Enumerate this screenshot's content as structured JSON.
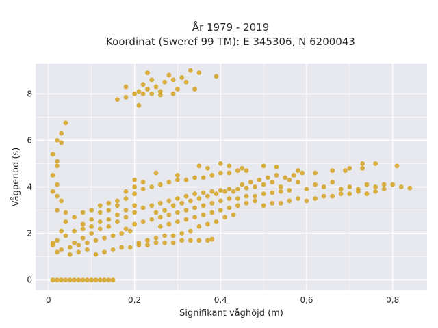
{
  "chart_data": {
    "type": "scatter",
    "title_line1": "År 1979 - 2019",
    "title_line2": "Koordinat (Sweref 99 TM): E 345306, N 6200043",
    "xlabel": "Signifikant våghöjd (m)",
    "ylabel": "Vågperiod (s)",
    "xlim": [
      -0.03,
      0.88
    ],
    "ylim": [
      -0.45,
      9.3
    ],
    "xticks": [
      0,
      0.2,
      0.4,
      0.6,
      0.8
    ],
    "xtick_labels": [
      "0",
      "0,2",
      "0,4",
      "0,6",
      "0,8"
    ],
    "yticks": [
      0,
      2,
      4,
      6,
      8
    ],
    "ytick_labels": [
      "0",
      "2",
      "4",
      "6",
      "8"
    ],
    "grid": true,
    "point_color": "#d4a220",
    "background_color": "#e8e8ef",
    "points": [
      [
        0.01,
        0
      ],
      [
        0.02,
        0
      ],
      [
        0.03,
        0
      ],
      [
        0.04,
        0
      ],
      [
        0.05,
        0
      ],
      [
        0.06,
        0
      ],
      [
        0.07,
        0
      ],
      [
        0.08,
        0
      ],
      [
        0.09,
        0
      ],
      [
        0.1,
        0
      ],
      [
        0.11,
        0
      ],
      [
        0.12,
        0
      ],
      [
        0.13,
        0
      ],
      [
        0.14,
        0
      ],
      [
        0.15,
        0
      ],
      [
        0.01,
        5.4
      ],
      [
        0.02,
        5.1
      ],
      [
        0.02,
        6.0
      ],
      [
        0.03,
        6.3
      ],
      [
        0.04,
        6.75
      ],
      [
        0.03,
        5.9
      ],
      [
        0.02,
        4.9
      ],
      [
        0.01,
        4.5
      ],
      [
        0.02,
        4.1
      ],
      [
        0.01,
        3.8
      ],
      [
        0.02,
        3.6
      ],
      [
        0.03,
        3.4
      ],
      [
        0.02,
        3.0
      ],
      [
        0.01,
        1.6
      ],
      [
        0.01,
        1.5
      ],
      [
        0.02,
        1.7
      ],
      [
        0.03,
        1.3
      ],
      [
        0.02,
        1.2
      ],
      [
        0.04,
        1.9
      ],
      [
        0.03,
        2.1
      ],
      [
        0.04,
        2.5
      ],
      [
        0.16,
        7.75
      ],
      [
        0.18,
        7.85
      ],
      [
        0.18,
        8.3
      ],
      [
        0.21,
        7.5
      ],
      [
        0.21,
        8.1
      ],
      [
        0.22,
        8.4
      ],
      [
        0.22,
        8.0
      ],
      [
        0.23,
        8.2
      ],
      [
        0.24,
        8.6
      ],
      [
        0.25,
        8.3
      ],
      [
        0.26,
        8.1
      ],
      [
        0.27,
        8.5
      ],
      [
        0.28,
        8.8
      ],
      [
        0.29,
        8.6
      ],
      [
        0.3,
        8.2
      ],
      [
        0.31,
        8.7
      ],
      [
        0.32,
        8.5
      ],
      [
        0.33,
        9.0
      ],
      [
        0.34,
        8.2
      ],
      [
        0.35,
        8.9
      ],
      [
        0.39,
        8.75
      ],
      [
        0.24,
        8.0
      ],
      [
        0.26,
        7.95
      ],
      [
        0.29,
        8.0
      ],
      [
        0.23,
        8.9
      ],
      [
        0.2,
        8.0
      ],
      [
        0.05,
        1.1
      ],
      [
        0.07,
        1.2
      ],
      [
        0.09,
        1.3
      ],
      [
        0.11,
        1.1
      ],
      [
        0.13,
        1.2
      ],
      [
        0.15,
        1.3
      ],
      [
        0.17,
        1.4
      ],
      [
        0.19,
        1.4
      ],
      [
        0.21,
        1.5
      ],
      [
        0.23,
        1.5
      ],
      [
        0.25,
        1.6
      ],
      [
        0.27,
        1.6
      ],
      [
        0.29,
        1.6
      ],
      [
        0.31,
        1.7
      ],
      [
        0.33,
        1.7
      ],
      [
        0.35,
        1.7
      ],
      [
        0.37,
        1.7
      ],
      [
        0.38,
        1.75
      ],
      [
        0.06,
        1.6
      ],
      [
        0.08,
        1.8
      ],
      [
        0.1,
        2.0
      ],
      [
        0.12,
        2.2
      ],
      [
        0.14,
        2.3
      ],
      [
        0.16,
        2.5
      ],
      [
        0.18,
        2.7
      ],
      [
        0.2,
        2.9
      ],
      [
        0.22,
        3.1
      ],
      [
        0.24,
        3.2
      ],
      [
        0.26,
        3.3
      ],
      [
        0.28,
        3.4
      ],
      [
        0.3,
        3.5
      ],
      [
        0.32,
        3.6
      ],
      [
        0.34,
        3.7
      ],
      [
        0.36,
        3.75
      ],
      [
        0.38,
        3.8
      ],
      [
        0.4,
        3.85
      ],
      [
        0.42,
        3.9
      ],
      [
        0.44,
        3.9
      ],
      [
        0.46,
        3.95
      ],
      [
        0.48,
        4.0
      ],
      [
        0.08,
        2.4
      ],
      [
        0.1,
        2.6
      ],
      [
        0.12,
        2.9
      ],
      [
        0.14,
        3.0
      ],
      [
        0.16,
        3.2
      ],
      [
        0.18,
        3.5
      ],
      [
        0.2,
        3.7
      ],
      [
        0.22,
        3.9
      ],
      [
        0.24,
        4.0
      ],
      [
        0.26,
        4.1
      ],
      [
        0.28,
        4.2
      ],
      [
        0.3,
        4.3
      ],
      [
        0.32,
        4.3
      ],
      [
        0.34,
        4.4
      ],
      [
        0.36,
        4.4
      ],
      [
        0.38,
        4.5
      ],
      [
        0.4,
        4.6
      ],
      [
        0.42,
        4.6
      ],
      [
        0.44,
        4.7
      ],
      [
        0.46,
        4.7
      ],
      [
        0.2,
        4.3
      ],
      [
        0.25,
        4.6
      ],
      [
        0.3,
        4.5
      ],
      [
        0.35,
        4.9
      ],
      [
        0.37,
        4.8
      ],
      [
        0.4,
        5.0
      ],
      [
        0.42,
        4.9
      ],
      [
        0.45,
        4.8
      ],
      [
        0.5,
        4.9
      ],
      [
        0.53,
        4.85
      ],
      [
        0.58,
        4.7
      ],
      [
        0.62,
        4.6
      ],
      [
        0.66,
        4.7
      ],
      [
        0.7,
        4.8
      ],
      [
        0.73,
        4.8
      ],
      [
        0.76,
        5.0
      ],
      [
        0.81,
        4.9
      ],
      [
        0.73,
        5.0
      ],
      [
        0.69,
        4.7
      ],
      [
        0.18,
        2.2
      ],
      [
        0.2,
        2.4
      ],
      [
        0.22,
        2.5
      ],
      [
        0.24,
        2.6
      ],
      [
        0.26,
        2.7
      ],
      [
        0.28,
        2.8
      ],
      [
        0.3,
        2.9
      ],
      [
        0.32,
        3.0
      ],
      [
        0.34,
        3.1
      ],
      [
        0.36,
        3.2
      ],
      [
        0.38,
        3.3
      ],
      [
        0.4,
        3.4
      ],
      [
        0.42,
        3.5
      ],
      [
        0.44,
        3.5
      ],
      [
        0.46,
        3.6
      ],
      [
        0.48,
        3.6
      ],
      [
        0.5,
        3.7
      ],
      [
        0.52,
        3.75
      ],
      [
        0.54,
        3.8
      ],
      [
        0.56,
        3.85
      ],
      [
        0.5,
        4.1
      ],
      [
        0.52,
        4.2
      ],
      [
        0.54,
        4.0
      ],
      [
        0.56,
        4.3
      ],
      [
        0.58,
        4.2
      ],
      [
        0.6,
        3.9
      ],
      [
        0.62,
        4.1
      ],
      [
        0.64,
        4.0
      ],
      [
        0.66,
        4.2
      ],
      [
        0.68,
        3.9
      ],
      [
        0.7,
        4.0
      ],
      [
        0.72,
        3.9
      ],
      [
        0.74,
        4.1
      ],
      [
        0.76,
        4.0
      ],
      [
        0.78,
        4.1
      ],
      [
        0.8,
        4.1
      ],
      [
        0.82,
        4.0
      ],
      [
        0.84,
        3.95
      ],
      [
        0.5,
        3.2
      ],
      [
        0.52,
        3.3
      ],
      [
        0.54,
        3.3
      ],
      [
        0.56,
        3.4
      ],
      [
        0.58,
        3.5
      ],
      [
        0.6,
        3.4
      ],
      [
        0.62,
        3.5
      ],
      [
        0.64,
        3.6
      ],
      [
        0.66,
        3.6
      ],
      [
        0.68,
        3.7
      ],
      [
        0.7,
        3.7
      ],
      [
        0.72,
        3.8
      ],
      [
        0.74,
        3.7
      ],
      [
        0.76,
        3.8
      ],
      [
        0.78,
        3.9
      ],
      [
        0.05,
        1.4
      ],
      [
        0.07,
        1.5
      ],
      [
        0.09,
        1.6
      ],
      [
        0.11,
        1.7
      ],
      [
        0.13,
        1.8
      ],
      [
        0.15,
        1.9
      ],
      [
        0.17,
        2.0
      ],
      [
        0.19,
        2.1
      ],
      [
        0.06,
        2.1
      ],
      [
        0.08,
        2.2
      ],
      [
        0.1,
        2.3
      ],
      [
        0.12,
        2.5
      ],
      [
        0.14,
        2.6
      ],
      [
        0.16,
        2.8
      ],
      [
        0.18,
        3.0
      ],
      [
        0.2,
        3.2
      ],
      [
        0.04,
        2.9
      ],
      [
        0.06,
        2.7
      ],
      [
        0.08,
        2.9
      ],
      [
        0.1,
        3.0
      ],
      [
        0.12,
        3.2
      ],
      [
        0.14,
        3.3
      ],
      [
        0.16,
        3.4
      ],
      [
        0.18,
        3.8
      ],
      [
        0.2,
        4.0
      ],
      [
        0.22,
        4.2
      ],
      [
        0.25,
        2.9
      ],
      [
        0.27,
        3.0
      ],
      [
        0.29,
        3.2
      ],
      [
        0.31,
        3.3
      ],
      [
        0.33,
        3.4
      ],
      [
        0.35,
        3.5
      ],
      [
        0.37,
        3.6
      ],
      [
        0.39,
        3.7
      ],
      [
        0.41,
        3.8
      ],
      [
        0.43,
        3.8
      ],
      [
        0.45,
        4.1
      ],
      [
        0.47,
        4.2
      ],
      [
        0.49,
        4.3
      ],
      [
        0.51,
        4.4
      ],
      [
        0.53,
        4.5
      ],
      [
        0.55,
        4.4
      ],
      [
        0.57,
        4.5
      ],
      [
        0.59,
        4.6
      ],
      [
        0.26,
        2.3
      ],
      [
        0.28,
        2.4
      ],
      [
        0.3,
        2.5
      ],
      [
        0.32,
        2.6
      ],
      [
        0.34,
        2.7
      ],
      [
        0.36,
        2.8
      ],
      [
        0.38,
        2.9
      ],
      [
        0.4,
        3.0
      ],
      [
        0.42,
        3.1
      ],
      [
        0.44,
        3.2
      ],
      [
        0.46,
        3.3
      ],
      [
        0.48,
        3.4
      ],
      [
        0.29,
        1.9
      ],
      [
        0.31,
        2.0
      ],
      [
        0.33,
        2.1
      ],
      [
        0.35,
        2.3
      ],
      [
        0.37,
        2.4
      ],
      [
        0.39,
        2.5
      ],
      [
        0.41,
        2.7
      ],
      [
        0.43,
        2.8
      ],
      [
        0.27,
        1.9
      ],
      [
        0.25,
        1.8
      ],
      [
        0.23,
        1.7
      ],
      [
        0.21,
        1.6
      ]
    ]
  }
}
